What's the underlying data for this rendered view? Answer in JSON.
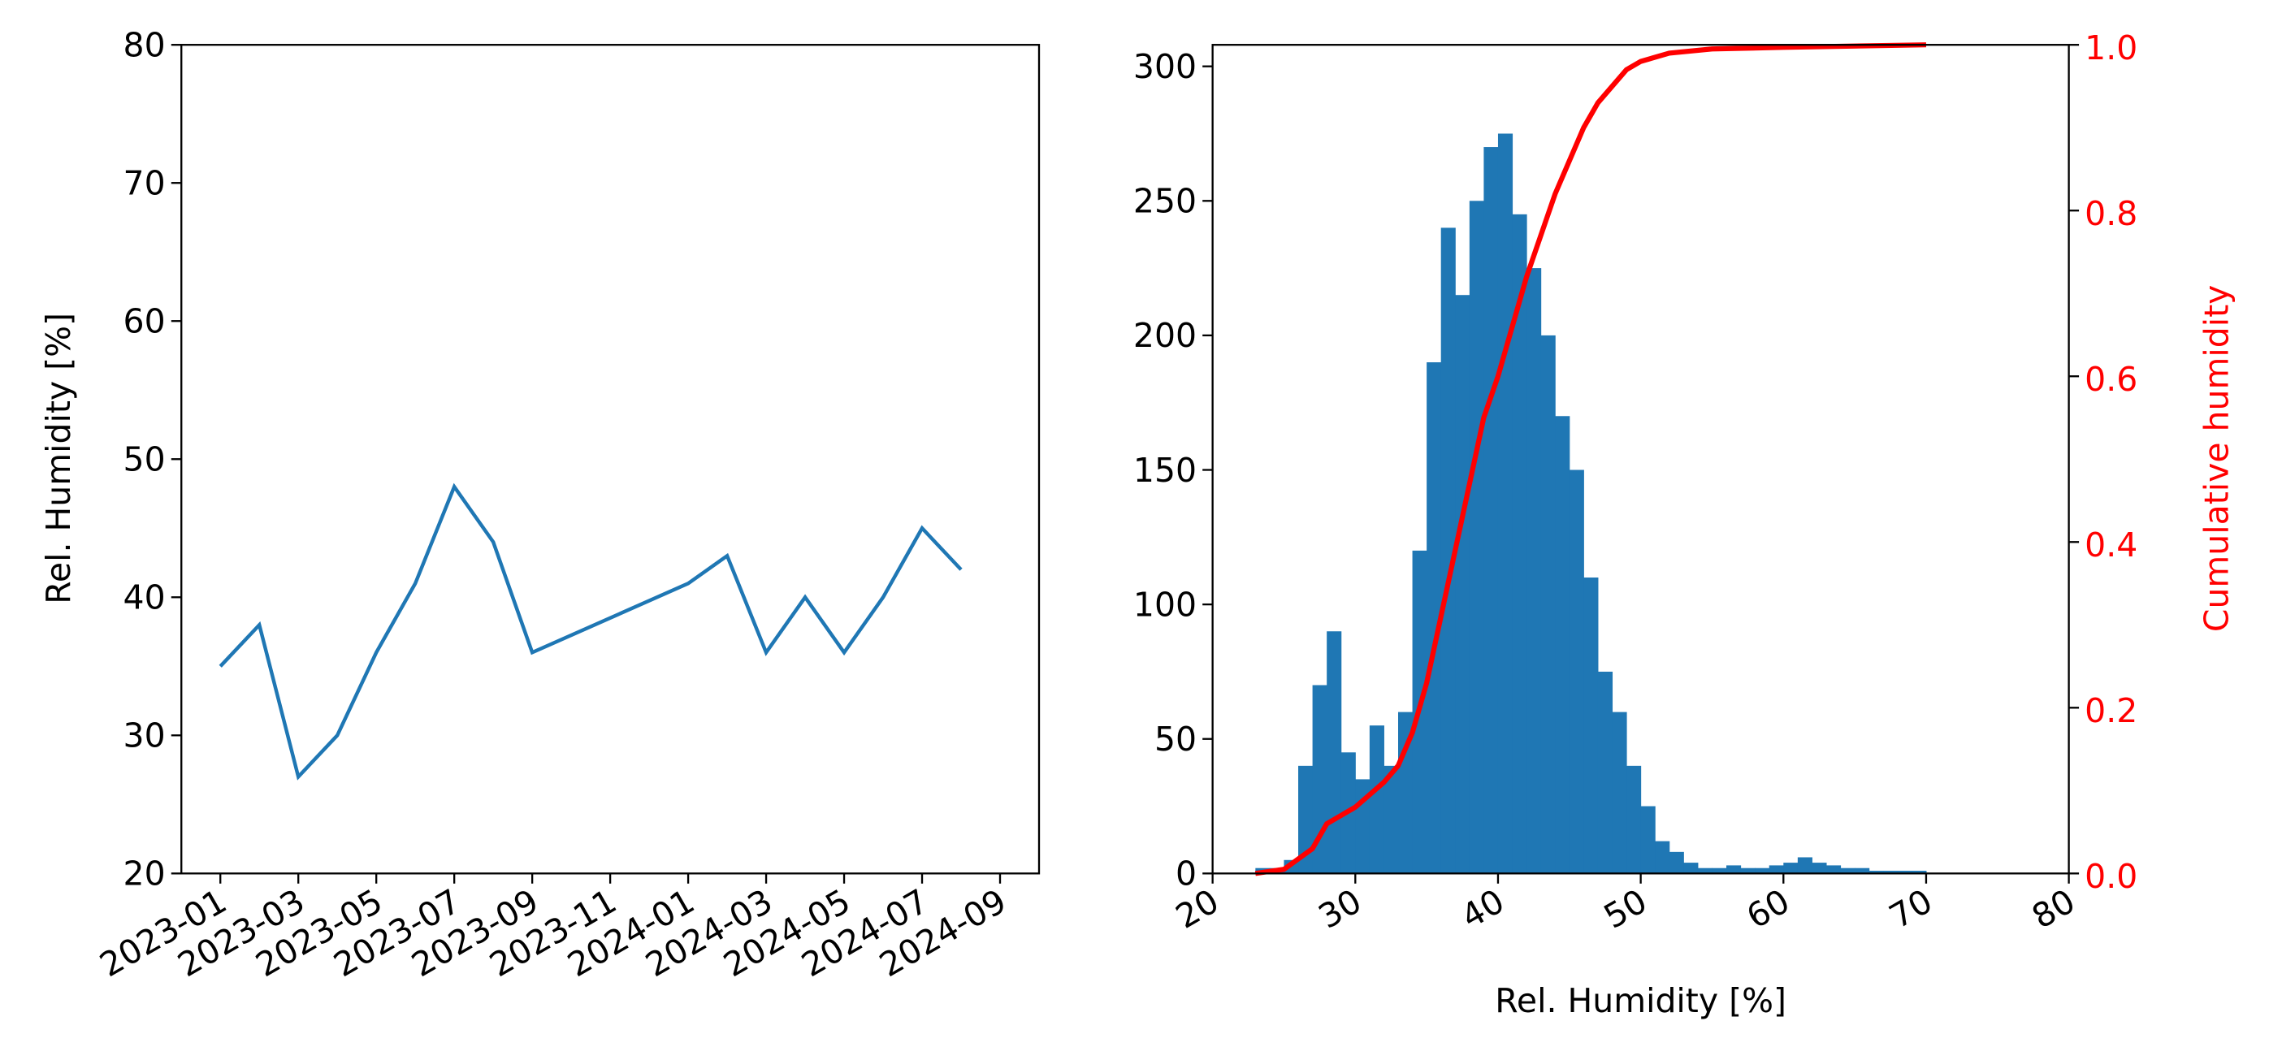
{
  "chart_data": [
    {
      "type": "line",
      "ylabel": "Rel. Humidity [%]",
      "x": [
        "2023-01",
        "2023-02",
        "2023-03",
        "2023-04",
        "2023-05",
        "2023-06",
        "2023-07",
        "2023-08",
        "2023-09",
        "2024-01",
        "2024-02",
        "2024-03",
        "2024-04",
        "2024-05",
        "2024-06",
        "2024-07",
        "2024-08"
      ],
      "values": [
        35,
        38,
        27,
        30,
        36,
        41,
        48,
        44,
        36,
        41,
        43,
        36,
        40,
        36,
        40,
        45,
        42
      ],
      "color": "#1f77b4",
      "xlim": [
        "2022-12",
        "2024-10"
      ],
      "xticks": [
        "2023-01",
        "2023-03",
        "2023-05",
        "2023-07",
        "2023-09",
        "2023-11",
        "2024-01",
        "2024-03",
        "2024-05",
        "2024-07",
        "2024-09"
      ],
      "ylim": [
        20,
        80
      ],
      "yticks": [
        20,
        30,
        40,
        50,
        60,
        70,
        80
      ]
    },
    {
      "type": "histogram",
      "xlabel": "Rel. Humidity [%]",
      "y2label": "Cumulative humidity",
      "bins": [
        23,
        24,
        25,
        26,
        27,
        28,
        29,
        30,
        31,
        32,
        33,
        34,
        35,
        36,
        37,
        38,
        39,
        40,
        41,
        42,
        43,
        44,
        45,
        46,
        47,
        48,
        49,
        50,
        51,
        52,
        53,
        54,
        55,
        56,
        57,
        58,
        59,
        60,
        61,
        62,
        63,
        64,
        65,
        66,
        67,
        68,
        69,
        70
      ],
      "counts": [
        2,
        2,
        5,
        40,
        70,
        90,
        45,
        35,
        55,
        40,
        60,
        120,
        190,
        240,
        215,
        250,
        270,
        275,
        245,
        225,
        200,
        170,
        150,
        110,
        75,
        60,
        40,
        25,
        12,
        8,
        4,
        2,
        2,
        3,
        2,
        2,
        3,
        4,
        6,
        4,
        3,
        2,
        2,
        1,
        1,
        1,
        1
      ],
      "color": "#1f77b4",
      "series": [
        {
          "axis": "y2",
          "color": "#ff0000",
          "x": [
            23,
            25,
            27,
            28,
            30,
            32,
            33,
            34,
            35,
            36,
            37,
            38,
            39,
            40,
            41,
            42,
            43,
            44,
            45,
            46,
            47,
            48,
            49,
            50,
            52,
            55,
            60,
            70
          ],
          "values": [
            0,
            0.005,
            0.03,
            0.06,
            0.08,
            0.11,
            0.13,
            0.17,
            0.23,
            0.31,
            0.39,
            0.47,
            0.55,
            0.6,
            0.66,
            0.72,
            0.77,
            0.82,
            0.86,
            0.9,
            0.93,
            0.95,
            0.97,
            0.98,
            0.99,
            0.995,
            0.997,
            1.0
          ]
        }
      ],
      "xlim": [
        20,
        80
      ],
      "xticks": [
        20,
        30,
        40,
        50,
        60,
        70,
        80
      ],
      "ylim": [
        0,
        308
      ],
      "yticks": [
        0,
        50,
        100,
        150,
        200,
        250,
        300
      ],
      "y2lim": [
        0,
        1
      ],
      "y2ticks": [
        {
          "value": 0,
          "label": "0.0"
        },
        0.2,
        0.4,
        0.6,
        0.8,
        {
          "value": 1,
          "label": "1.0"
        }
      ],
      "y2color": "#ff0000"
    }
  ]
}
